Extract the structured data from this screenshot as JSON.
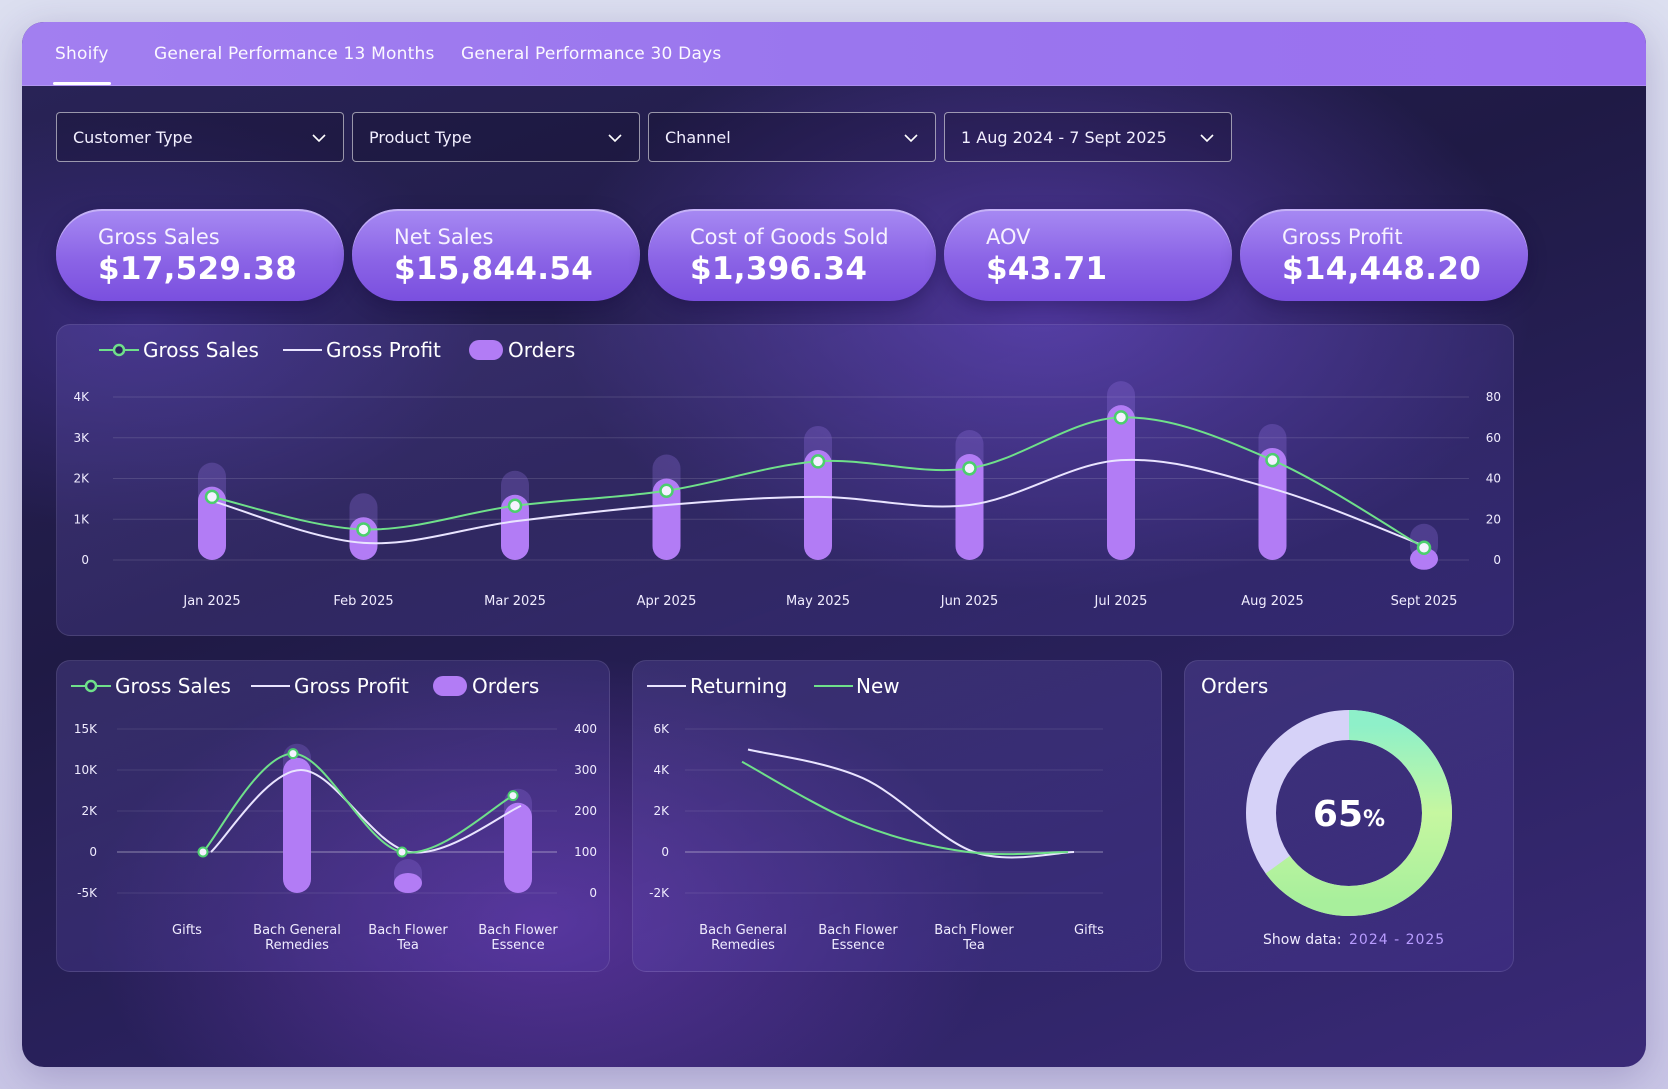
{
  "tabs": [
    "Shoify",
    "General Performance 13 Months",
    "General Performance 30 Days"
  ],
  "filters": [
    "Customer Type",
    "Product Type",
    "Channel",
    "1 Aug 2024 - 7 Sept 2025"
  ],
  "kpis": [
    {
      "label": "Gross Sales",
      "value": "$17,529.38"
    },
    {
      "label": "Net Sales",
      "value": "$15,844.54"
    },
    {
      "label": "Cost of Goods Sold",
      "value": "$1,396.34"
    },
    {
      "label": "AOV",
      "value": "$43.71"
    },
    {
      "label": "Gross Profit",
      "value": "$14,448.20"
    }
  ],
  "colors": {
    "gross_sales": "#6fe08a",
    "gross_profit": "#e9e4ff",
    "orders": "#b27cf5",
    "accent": "#9b70f0"
  },
  "legend": {
    "gross_sales": "Gross Sales",
    "gross_profit": "Gross Profit",
    "orders": "Orders",
    "returning": "Returning",
    "new": "New"
  },
  "donut": {
    "title": "Orders",
    "value": "65%",
    "value_num": "65",
    "unit": "%",
    "percent": 65,
    "show_label": "Show data:",
    "range": "2024 - 2025"
  },
  "chart_data": [
    {
      "type": "line",
      "categories": [
        "Jan 2025",
        "Feb 2025",
        "Mar 2025",
        "Apr 2025",
        "May 2025",
        "Jun 2025",
        "Jul 2025",
        "Aug 2025",
        "Sept 2025"
      ],
      "left_axis": {
        "ticks": [
          "0",
          "1K",
          "2K",
          "3K",
          "4K"
        ],
        "ylim": [
          0,
          4000
        ]
      },
      "right_axis": {
        "ticks": [
          "0",
          "20",
          "40",
          "60",
          "80"
        ],
        "ylim": [
          0,
          80
        ]
      },
      "series": [
        {
          "name": "Gross Sales",
          "kind": "line-markers",
          "axis": "left",
          "values": [
            1550,
            750,
            1330,
            1700,
            2420,
            2250,
            3500,
            2450,
            300
          ]
        },
        {
          "name": "Gross Profit",
          "kind": "line",
          "axis": "left",
          "values": [
            1450,
            420,
            950,
            1350,
            1550,
            1350,
            2450,
            1750,
            350
          ]
        },
        {
          "name": "Orders",
          "kind": "bar",
          "axis": "right",
          "values": [
            36,
            21,
            32,
            40,
            54,
            52,
            76,
            55,
            6
          ]
        }
      ]
    },
    {
      "type": "line",
      "categories": [
        "Gifts",
        "Bach General Remedies",
        "Bach Flower Tea",
        "Bach Flower Essence"
      ],
      "left_axis": {
        "ticks": [
          "-5K",
          "0",
          "2K",
          "10K",
          "15K"
        ]
      },
      "right_axis": {
        "ticks": [
          "0",
          "100",
          "200",
          "300",
          "400"
        ]
      },
      "series": [
        {
          "name": "Gross Sales",
          "kind": "line-markers",
          "axis": "left",
          "values": [
            0,
            12000,
            0,
            5000
          ]
        },
        {
          "name": "Gross Profit",
          "kind": "line",
          "axis": "left",
          "values": [
            0,
            10000,
            0,
            3000
          ]
        },
        {
          "name": "Orders",
          "kind": "bar",
          "axis": "right",
          "values": [
            0,
            330,
            30,
            220
          ]
        }
      ]
    },
    {
      "type": "line",
      "categories": [
        "Bach General Remedies",
        "Bach Flower Essence",
        "Bach Flower Tea",
        "Gifts"
      ],
      "left_axis": {
        "ticks": [
          "-2K",
          "0",
          "2K",
          "4K",
          "6K"
        ],
        "ylim": [
          -2000,
          6000
        ]
      },
      "series": [
        {
          "name": "Returning",
          "kind": "line",
          "values": [
            5000,
            3600,
            0,
            0
          ]
        },
        {
          "name": "New",
          "kind": "line",
          "values": [
            4400,
            1400,
            0,
            0
          ]
        }
      ]
    }
  ]
}
